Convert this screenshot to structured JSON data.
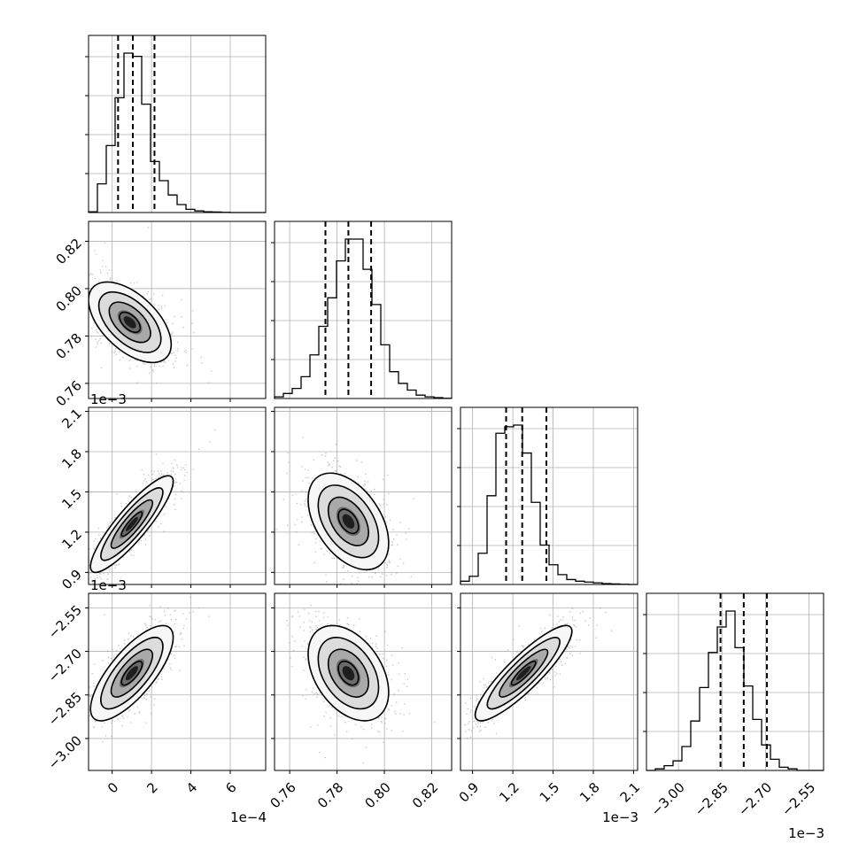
{
  "chart_data": {
    "type": "corner",
    "parameters": [
      {
        "ticks": [
          0,
          2,
          4,
          6
        ],
        "tick_labels": [
          "0",
          "2",
          "4",
          "6"
        ],
        "range": [
          -1.2,
          7.8
        ],
        "offset_label": "1e−4"
      },
      {
        "ticks": [
          0.76,
          0.78,
          0.8,
          0.82
        ],
        "tick_labels": [
          "0.76",
          "0.78",
          "0.80",
          "0.82"
        ],
        "range": [
          0.7536,
          0.8284
        ],
        "offset_label": ""
      },
      {
        "ticks": [
          0.9,
          1.2,
          1.5,
          1.8,
          2.1
        ],
        "tick_labels": [
          "0.9",
          "1.2",
          "1.5",
          "1.8",
          "2.1"
        ],
        "range": [
          0.81,
          2.13
        ],
        "offset_label": "1e−3"
      },
      {
        "ticks": [
          -3.0,
          -2.85,
          -2.7,
          -2.55
        ],
        "tick_labels": [
          "−3.00",
          "−2.85",
          "−2.70",
          "−2.55"
        ],
        "range": [
          -3.11,
          -2.5
        ],
        "offset_label": "1e−3"
      }
    ],
    "marginals": [
      {
        "bin_edges_start": -1.2,
        "bin_width": 0.45,
        "counts": [
          0.005,
          0.18,
          0.42,
          0.72,
          1.0,
          0.98,
          0.68,
          0.32,
          0.2,
          0.11,
          0.05,
          0.02,
          0.01,
          0.005,
          0.003,
          0.001,
          0,
          0,
          0,
          0
        ],
        "quantiles": [
          0.3,
          1.05,
          2.15
        ]
      },
      {
        "bin_edges_start": 0.7536,
        "bin_width": 0.00374,
        "counts": [
          0.01,
          0.03,
          0.06,
          0.13,
          0.26,
          0.43,
          0.6,
          0.82,
          0.95,
          0.95,
          0.77,
          0.56,
          0.32,
          0.16,
          0.09,
          0.05,
          0.02,
          0.01,
          0.005,
          0.001
        ],
        "quantiles": [
          0.7751,
          0.7848,
          0.7944
        ]
      },
      {
        "bin_edges_start": 0.81,
        "bin_width": 0.066,
        "counts": [
          0.02,
          0.05,
          0.19,
          0.54,
          0.92,
          0.96,
          0.97,
          0.8,
          0.5,
          0.24,
          0.12,
          0.06,
          0.03,
          0.02,
          0.015,
          0.01,
          0.005,
          0.003,
          0.001,
          0.0
        ],
        "quantiles": [
          1.15,
          1.27,
          1.45
        ]
      },
      {
        "bin_edges_start": -3.11,
        "bin_width": 0.0305,
        "counts": [
          0.0,
          0.01,
          0.03,
          0.06,
          0.15,
          0.31,
          0.52,
          0.74,
          0.9,
          1.0,
          0.77,
          0.53,
          0.32,
          0.16,
          0.07,
          0.02,
          0.01,
          0,
          0,
          0
        ],
        "quantiles": [
          -2.855,
          -2.775,
          -2.695
        ]
      }
    ],
    "pairs": [
      {
        "row": 1,
        "col": 0,
        "center": [
          0.9,
          0.7858
        ],
        "sigma": [
          1.05,
          0.0085
        ],
        "rho": -0.55
      },
      {
        "row": 2,
        "col": 0,
        "center": [
          1.0,
          1.26
        ],
        "sigma": [
          1.05,
          0.18
        ],
        "rho": 0.88
      },
      {
        "row": 2,
        "col": 1,
        "center": [
          0.7848,
          1.28
        ],
        "sigma": [
          0.0085,
          0.18
        ],
        "rho": -0.45
      },
      {
        "row": 3,
        "col": 0,
        "center": [
          1.0,
          -2.775
        ],
        "sigma": [
          1.05,
          0.082
        ],
        "rho": 0.75
      },
      {
        "row": 3,
        "col": 1,
        "center": [
          0.7848,
          -2.775
        ],
        "sigma": [
          0.0085,
          0.082
        ],
        "rho": -0.4
      },
      {
        "row": 3,
        "col": 2,
        "center": [
          1.28,
          -2.775
        ],
        "sigma": [
          0.18,
          0.082
        ],
        "rho": 0.88
      }
    ],
    "contour_sigma_levels": [
      0.5,
      1.0,
      1.5,
      2.0
    ],
    "grid": true
  }
}
